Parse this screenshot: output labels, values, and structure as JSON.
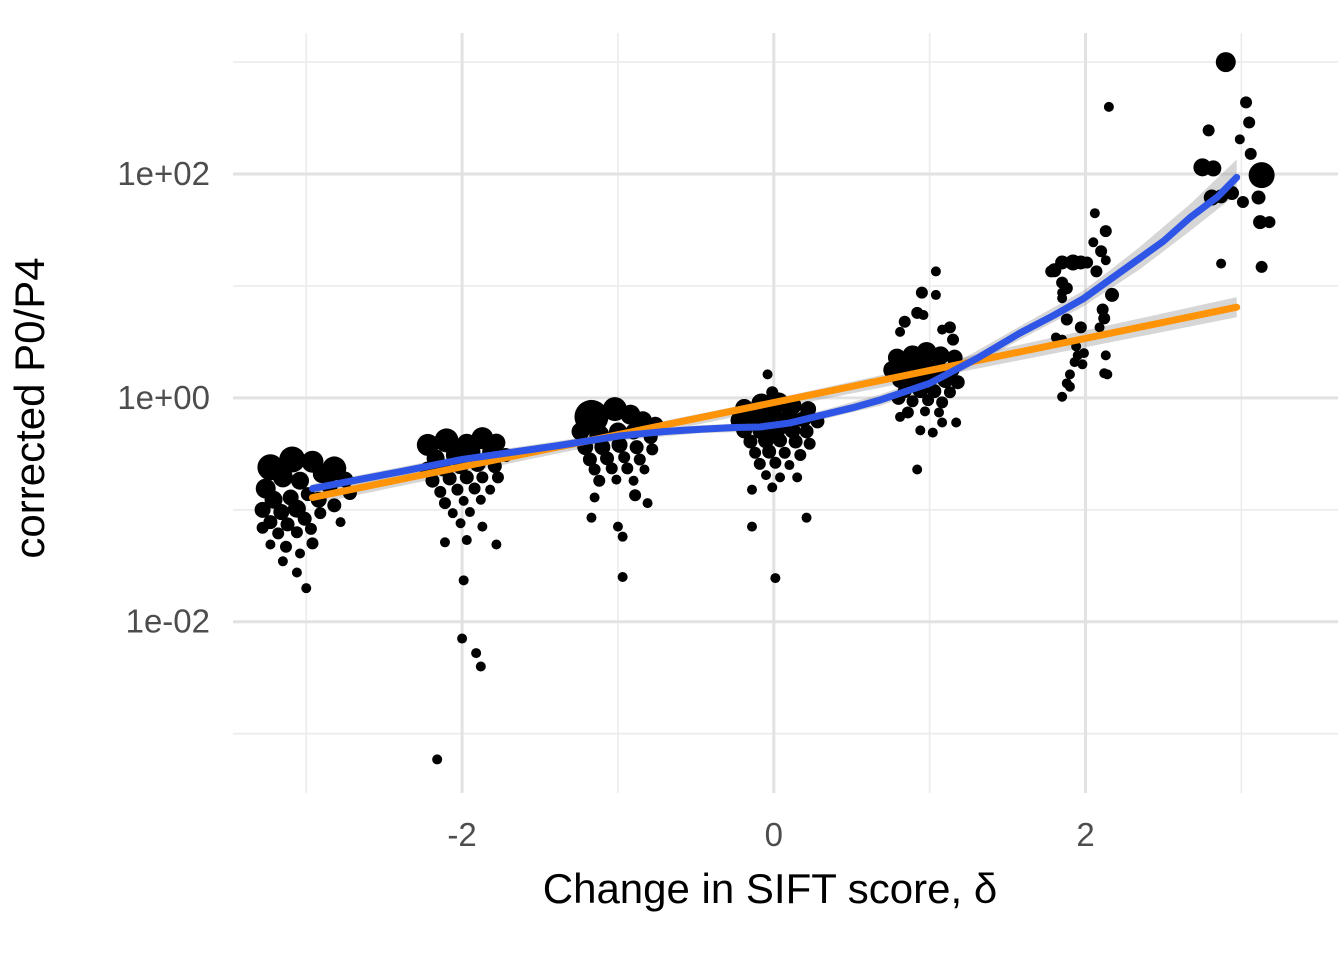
{
  "figure": {
    "background": "#ffffff"
  },
  "styles": {
    "point_color": "#000000",
    "loess_color": "#2E55E6",
    "linear_color": "#FF9408",
    "band_color": "#999999",
    "band_opacity": 0.4,
    "grid_major_color": "#E2E2E2",
    "grid_minor_color": "#EBEBEB",
    "tick_label_color": "#4D4D4D",
    "axis_title_color": "#000000"
  },
  "chart_data": {
    "type": "scatter",
    "title": "",
    "xlabel": "Change in SIFT score, δ",
    "ylabel": "corrected P0/P4",
    "x_axis": {
      "lim": [
        -3.47,
        3.62
      ],
      "ticks": [
        {
          "value": -2,
          "label": "-2"
        },
        {
          "value": 0,
          "label": "0"
        },
        {
          "value": 2,
          "label": "2"
        }
      ],
      "minor": [
        -3,
        -1,
        1,
        3
      ]
    },
    "y_axis": {
      "scale": "log10",
      "lim_log10": [
        -3.53,
        3.26
      ],
      "ticks": [
        {
          "log10": 2,
          "label": "1e+02"
        },
        {
          "log10": 0,
          "label": "1e+00"
        },
        {
          "log10": -2,
          "label": "1e-02"
        }
      ],
      "minor_log10": [
        3,
        1,
        -1,
        -3
      ]
    },
    "legend": "none",
    "grid": "on",
    "series": [
      {
        "name": "loess-smooth",
        "color_key": "loess_color"
      },
      {
        "name": "linear-fit",
        "color_key": "linear_color"
      }
    ],
    "loess_line": [
      [
        -2.96,
        -0.81
      ],
      [
        -2.7,
        -0.74
      ],
      [
        -2.4,
        -0.66
      ],
      [
        -2.0,
        -0.55
      ],
      [
        -1.7,
        -0.49
      ],
      [
        -1.4,
        -0.43
      ],
      [
        -0.99,
        -0.34
      ],
      [
        -0.7,
        -0.3
      ],
      [
        -0.47,
        -0.28
      ],
      [
        -0.25,
        -0.265
      ],
      [
        -0.09,
        -0.26
      ],
      [
        0.1,
        -0.225
      ],
      [
        0.29,
        -0.16
      ],
      [
        0.5,
        -0.09
      ],
      [
        0.68,
        -0.02
      ],
      [
        1.0,
        0.13
      ],
      [
        1.3,
        0.35
      ],
      [
        1.58,
        0.58
      ],
      [
        1.8,
        0.74
      ],
      [
        1.99,
        0.89
      ],
      [
        2.18,
        1.08
      ],
      [
        2.35,
        1.25
      ],
      [
        2.5,
        1.4
      ],
      [
        2.67,
        1.61
      ],
      [
        2.85,
        1.8
      ],
      [
        2.97,
        1.97
      ]
    ],
    "loess_band": [
      [
        -2.96,
        -0.77
      ],
      [
        -2.4,
        -0.62
      ],
      [
        -2.0,
        -0.51
      ],
      [
        -1.4,
        -0.39
      ],
      [
        -0.99,
        -0.3
      ],
      [
        -0.47,
        -0.245
      ],
      [
        -0.09,
        -0.22
      ],
      [
        0.29,
        -0.12
      ],
      [
        0.68,
        0.03
      ],
      [
        1.0,
        0.18
      ],
      [
        1.58,
        0.64
      ],
      [
        1.99,
        0.96
      ],
      [
        2.35,
        1.35
      ],
      [
        2.67,
        1.73
      ],
      [
        2.97,
        2.13
      ],
      [
        2.97,
        1.82
      ],
      [
        2.67,
        1.49
      ],
      [
        2.35,
        1.15
      ],
      [
        1.99,
        0.82
      ],
      [
        1.58,
        0.52
      ],
      [
        1.0,
        0.08
      ],
      [
        0.68,
        -0.07
      ],
      [
        0.29,
        -0.2
      ],
      [
        -0.09,
        -0.3
      ],
      [
        -0.47,
        -0.315
      ],
      [
        -0.99,
        -0.38
      ],
      [
        -1.4,
        -0.47
      ],
      [
        -2.0,
        -0.59
      ],
      [
        -2.4,
        -0.7
      ],
      [
        -2.96,
        -0.85
      ]
    ],
    "linear_line": [
      [
        -2.96,
        -0.89
      ],
      [
        2.97,
        0.81
      ]
    ],
    "linear_band": [
      [
        -2.96,
        -0.84
      ],
      [
        0.01,
        -0.005
      ],
      [
        2.97,
        0.9
      ],
      [
        2.97,
        0.72
      ],
      [
        0.01,
        -0.095
      ],
      [
        -2.96,
        -0.95
      ]
    ],
    "points": [
      [
        -3.23,
        -0.62,
        13
      ],
      [
        -3.09,
        -0.55,
        13
      ],
      [
        -2.96,
        -0.57,
        11
      ],
      [
        -3.15,
        -0.71,
        10
      ],
      [
        -3.04,
        -0.74,
        9
      ],
      [
        -3.26,
        -0.81,
        10
      ],
      [
        -2.9,
        -0.68,
        9
      ],
      [
        -2.82,
        -0.63,
        12
      ],
      [
        -3.21,
        -0.91,
        9
      ],
      [
        -3.1,
        -0.89,
        8
      ],
      [
        -2.99,
        -0.86,
        7
      ],
      [
        -3.28,
        -1.0,
        8
      ],
      [
        -3.16,
        -1.02,
        8
      ],
      [
        -3.06,
        -0.99,
        9
      ],
      [
        -2.92,
        -0.91,
        8
      ],
      [
        -2.85,
        -0.79,
        8
      ],
      [
        -3.23,
        -1.11,
        7
      ],
      [
        -3.12,
        -1.13,
        7
      ],
      [
        -3.01,
        -1.08,
        7
      ],
      [
        -2.91,
        -1.03,
        6
      ],
      [
        -2.82,
        -0.96,
        7
      ],
      [
        -3.18,
        -1.21,
        6
      ],
      [
        -3.06,
        -1.2,
        6
      ],
      [
        -3.28,
        -1.16,
        6
      ],
      [
        -2.97,
        -1.17,
        6
      ],
      [
        -3.13,
        -1.33,
        6
      ],
      [
        -3.23,
        -1.31,
        5
      ],
      [
        -3.04,
        -1.39,
        5
      ],
      [
        -3.15,
        -1.46,
        5
      ],
      [
        -2.96,
        -1.3,
        6
      ],
      [
        -3.06,
        -1.56,
        5
      ],
      [
        -3.0,
        -1.7,
        5
      ],
      [
        -2.75,
        -0.73,
        8
      ],
      [
        -2.72,
        -0.85,
        7
      ],
      [
        -2.78,
        -1.11,
        5
      ],
      [
        -2.22,
        -0.42,
        11
      ],
      [
        -2.1,
        -0.38,
        12
      ],
      [
        -1.97,
        -0.41,
        10
      ],
      [
        -1.87,
        -0.36,
        11
      ],
      [
        -1.78,
        -0.4,
        9
      ],
      [
        -2.17,
        -0.54,
        9
      ],
      [
        -2.04,
        -0.51,
        10
      ],
      [
        -1.94,
        -0.48,
        9
      ],
      [
        -1.82,
        -0.48,
        8
      ],
      [
        -1.72,
        -0.51,
        7
      ],
      [
        -2.22,
        -0.64,
        8
      ],
      [
        -2.12,
        -0.63,
        8
      ],
      [
        -2.01,
        -0.61,
        8
      ],
      [
        -1.9,
        -0.59,
        8
      ],
      [
        -1.79,
        -0.61,
        7
      ],
      [
        -2.19,
        -0.74,
        7
      ],
      [
        -2.08,
        -0.72,
        7
      ],
      [
        -1.97,
        -0.71,
        7
      ],
      [
        -1.87,
        -0.71,
        6
      ],
      [
        -1.77,
        -0.71,
        6
      ],
      [
        -2.14,
        -0.84,
        6
      ],
      [
        -2.03,
        -0.82,
        6
      ],
      [
        -1.92,
        -0.81,
        6
      ],
      [
        -1.82,
        -0.82,
        5
      ],
      [
        -2.11,
        -0.94,
        6
      ],
      [
        -1.99,
        -0.92,
        5
      ],
      [
        -1.88,
        -0.91,
        5
      ],
      [
        -2.06,
        -1.03,
        5
      ],
      [
        -1.95,
        -1.02,
        5
      ],
      [
        -2.01,
        -1.12,
        5
      ],
      [
        -1.87,
        -1.15,
        5
      ],
      [
        -2.11,
        -1.29,
        5
      ],
      [
        -1.97,
        -1.27,
        5
      ],
      [
        -1.78,
        -1.31,
        5
      ],
      [
        -1.99,
        -1.63,
        5
      ],
      [
        -2.0,
        -2.15,
        5
      ],
      [
        -1.91,
        -2.28,
        5
      ],
      [
        -1.88,
        -2.4,
        5
      ],
      [
        -2.16,
        -3.23,
        5
      ],
      [
        -1.17,
        -0.17,
        17
      ],
      [
        -1.02,
        -0.1,
        12
      ],
      [
        -0.92,
        -0.15,
        10
      ],
      [
        -0.84,
        -0.2,
        9
      ],
      [
        -0.76,
        -0.24,
        8
      ],
      [
        -1.24,
        -0.3,
        9
      ],
      [
        -1.12,
        -0.33,
        10
      ],
      [
        -1.0,
        -0.3,
        9
      ],
      [
        -0.9,
        -0.3,
        8
      ],
      [
        -0.79,
        -0.35,
        7
      ],
      [
        -1.21,
        -0.44,
        8
      ],
      [
        -1.1,
        -0.44,
        8
      ],
      [
        -0.99,
        -0.42,
        8
      ],
      [
        -0.88,
        -0.44,
        7
      ],
      [
        -0.78,
        -0.46,
        6
      ],
      [
        -1.18,
        -0.55,
        7
      ],
      [
        -1.07,
        -0.54,
        7
      ],
      [
        -0.96,
        -0.53,
        6
      ],
      [
        -0.86,
        -0.55,
        6
      ],
      [
        -1.15,
        -0.64,
        6
      ],
      [
        -1.04,
        -0.63,
        6
      ],
      [
        -0.94,
        -0.63,
        6
      ],
      [
        -0.83,
        -0.64,
        5
      ],
      [
        -1.12,
        -0.74,
        6
      ],
      [
        -1.01,
        -0.73,
        5
      ],
      [
        -0.9,
        -0.74,
        5
      ],
      [
        -1.15,
        -0.89,
        5
      ],
      [
        -0.89,
        -0.87,
        6
      ],
      [
        -0.81,
        -0.94,
        5
      ],
      [
        -1.17,
        -1.07,
        5
      ],
      [
        -1.0,
        -1.15,
        5
      ],
      [
        -0.97,
        -1.24,
        5
      ],
      [
        -0.97,
        -1.6,
        5
      ],
      [
        -0.04,
        0.21,
        5
      ],
      [
        -0.01,
        0.05,
        6
      ],
      [
        -0.19,
        -0.09,
        9
      ],
      [
        -0.08,
        -0.05,
        10
      ],
      [
        0.03,
        -0.04,
        10
      ],
      [
        0.12,
        -0.07,
        9
      ],
      [
        0.22,
        -0.1,
        8
      ],
      [
        -0.22,
        -0.2,
        9
      ],
      [
        -0.11,
        -0.18,
        10
      ],
      [
        -0.01,
        -0.16,
        10
      ],
      [
        0.1,
        -0.17,
        9
      ],
      [
        0.19,
        -0.19,
        8
      ],
      [
        0.28,
        -0.21,
        7
      ],
      [
        -0.19,
        -0.29,
        8
      ],
      [
        -0.08,
        -0.29,
        9
      ],
      [
        0.02,
        -0.28,
        9
      ],
      [
        0.12,
        -0.29,
        8
      ],
      [
        0.21,
        -0.3,
        7
      ],
      [
        -0.15,
        -0.39,
        7
      ],
      [
        -0.05,
        -0.38,
        8
      ],
      [
        0.04,
        -0.38,
        7
      ],
      [
        0.14,
        -0.39,
        7
      ],
      [
        0.23,
        -0.41,
        6
      ],
      [
        -0.12,
        -0.49,
        6
      ],
      [
        -0.03,
        -0.48,
        7
      ],
      [
        0.07,
        -0.49,
        6
      ],
      [
        0.17,
        -0.51,
        6
      ],
      [
        -0.09,
        -0.59,
        6
      ],
      [
        0.01,
        -0.58,
        6
      ],
      [
        0.1,
        -0.6,
        5
      ],
      [
        -0.05,
        -0.69,
        5
      ],
      [
        0.04,
        -0.71,
        5
      ],
      [
        0.15,
        -0.71,
        5
      ],
      [
        -0.14,
        -0.82,
        5
      ],
      [
        -0.01,
        -0.8,
        5
      ],
      [
        0.21,
        -1.07,
        5
      ],
      [
        -0.14,
        -1.15,
        5
      ],
      [
        0.01,
        -1.61,
        5
      ],
      [
        1.04,
        1.13,
        5
      ],
      [
        0.95,
        0.94,
        6
      ],
      [
        1.04,
        0.92,
        5
      ],
      [
        0.92,
        0.76,
        6
      ],
      [
        0.96,
        0.74,
        5
      ],
      [
        0.84,
        0.68,
        6
      ],
      [
        1.13,
        0.63,
        6
      ],
      [
        0.81,
        0.59,
        5
      ],
      [
        1.08,
        0.61,
        5
      ],
      [
        1.15,
        0.52,
        6
      ],
      [
        0.79,
        0.36,
        9
      ],
      [
        0.89,
        0.38,
        10
      ],
      [
        0.98,
        0.41,
        10
      ],
      [
        1.07,
        0.38,
        9
      ],
      [
        1.16,
        0.36,
        8
      ],
      [
        0.76,
        0.25,
        9
      ],
      [
        0.86,
        0.27,
        10
      ],
      [
        0.96,
        0.29,
        10
      ],
      [
        1.05,
        0.27,
        9
      ],
      [
        1.14,
        0.25,
        8
      ],
      [
        0.81,
        0.16,
        8
      ],
      [
        0.9,
        0.17,
        9
      ],
      [
        1.0,
        0.18,
        8
      ],
      [
        1.1,
        0.16,
        8
      ],
      [
        1.18,
        0.14,
        7
      ],
      [
        0.84,
        0.06,
        7
      ],
      [
        0.94,
        0.07,
        8
      ],
      [
        1.03,
        0.06,
        7
      ],
      [
        1.13,
        0.05,
        6
      ],
      [
        0.8,
        0.0,
        7
      ],
      [
        0.89,
        -0.03,
        6
      ],
      [
        0.99,
        -0.02,
        6
      ],
      [
        1.08,
        -0.04,
        6
      ],
      [
        0.86,
        -0.13,
        6
      ],
      [
        0.97,
        -0.12,
        5
      ],
      [
        1.06,
        -0.13,
        5
      ],
      [
        0.81,
        -0.17,
        5
      ],
      [
        1.08,
        -0.22,
        5
      ],
      [
        1.17,
        -0.22,
        5
      ],
      [
        0.94,
        -0.29,
        5
      ],
      [
        1.02,
        -0.31,
        5
      ],
      [
        0.92,
        -0.64,
        5
      ],
      [
        2.15,
        2.6,
        5
      ],
      [
        2.06,
        1.65,
        5
      ],
      [
        2.13,
        1.49,
        6
      ],
      [
        2.05,
        1.39,
        5
      ],
      [
        2.1,
        1.31,
        6
      ],
      [
        2.13,
        1.23,
        5
      ],
      [
        1.8,
        1.14,
        7
      ],
      [
        1.85,
        1.21,
        7
      ],
      [
        1.92,
        1.21,
        8
      ],
      [
        1.97,
        1.21,
        7
      ],
      [
        2.01,
        1.21,
        6
      ],
      [
        1.78,
        1.13,
        6
      ],
      [
        2.07,
        1.13,
        6
      ],
      [
        1.85,
        1.03,
        6
      ],
      [
        1.88,
        0.98,
        6
      ],
      [
        1.85,
        0.94,
        5
      ],
      [
        1.85,
        0.89,
        5
      ],
      [
        2.17,
        0.92,
        7
      ],
      [
        2.11,
        0.79,
        6
      ],
      [
        2.12,
        0.71,
        6
      ],
      [
        1.88,
        0.7,
        6
      ],
      [
        1.97,
        0.63,
        6
      ],
      [
        2.09,
        0.63,
        5
      ],
      [
        1.81,
        0.54,
        5
      ],
      [
        1.85,
        0.52,
        5
      ],
      [
        1.94,
        0.46,
        5
      ],
      [
        1.95,
        0.38,
        5
      ],
      [
        1.99,
        0.4,
        5
      ],
      [
        2.13,
        0.38,
        5
      ],
      [
        1.93,
        0.32,
        5
      ],
      [
        1.98,
        0.3,
        5
      ],
      [
        1.9,
        0.21,
        5
      ],
      [
        2.12,
        0.22,
        5
      ],
      [
        2.14,
        0.21,
        5
      ],
      [
        1.88,
        0.13,
        5
      ],
      [
        1.9,
        0.1,
        5
      ],
      [
        1.85,
        0.01,
        5
      ],
      [
        2.9,
        3.0,
        10
      ],
      [
        3.03,
        2.64,
        6
      ],
      [
        3.05,
        2.46,
        6
      ],
      [
        2.79,
        2.39,
        6
      ],
      [
        2.99,
        2.31,
        5
      ],
      [
        3.06,
        2.18,
        6
      ],
      [
        2.75,
        2.06,
        9
      ],
      [
        2.82,
        2.05,
        8
      ],
      [
        3.13,
        1.99,
        13
      ],
      [
        2.81,
        1.79,
        8
      ],
      [
        2.87,
        1.8,
        7
      ],
      [
        2.94,
        1.83,
        7
      ],
      [
        3.01,
        1.75,
        6
      ],
      [
        3.11,
        1.79,
        7
      ],
      [
        3.12,
        1.57,
        7
      ],
      [
        3.18,
        1.57,
        6
      ],
      [
        2.87,
        1.2,
        5
      ],
      [
        3.13,
        1.17,
        6
      ]
    ]
  }
}
